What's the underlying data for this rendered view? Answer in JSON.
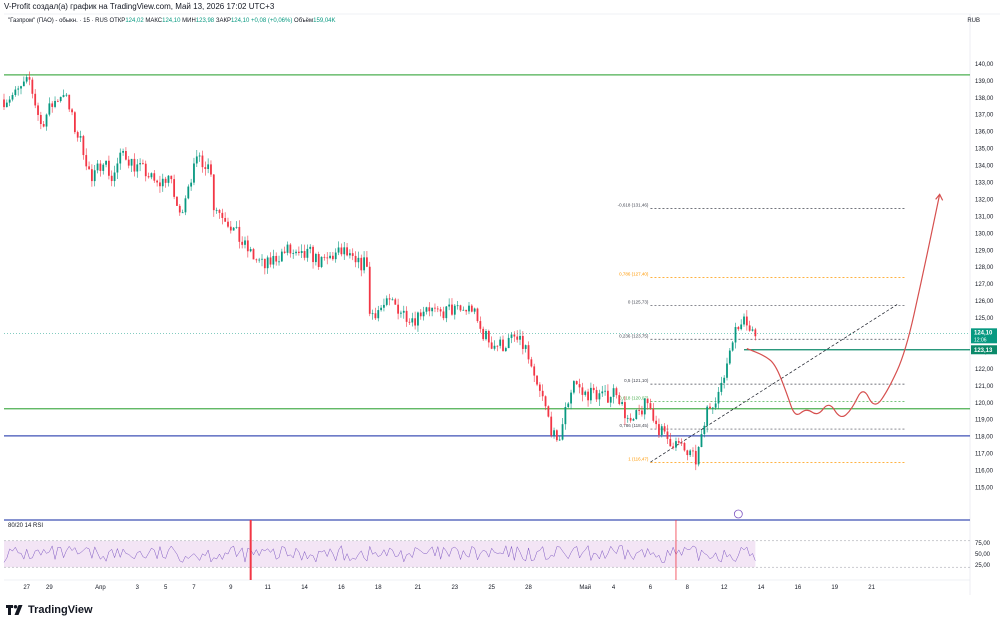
{
  "header": {
    "caption": "V-Profit создал(а) график на TradingView.com, Май 13, 2026 17:02 UTC+3",
    "currency": "RUB"
  },
  "legend": {
    "symbol": "\"Газпром\" (ПАО) - обыкн. · 15 · RUS",
    "open_label": "ОТКР",
    "open": "124,02",
    "high_label": "МАКС",
    "high": "124,10",
    "low_label": "МИН",
    "low": "123,98",
    "close_label": "ЗАКР",
    "close": "124,10",
    "change": "+0,08 (+0,06%)",
    "volume_label": "Объём",
    "volume": "159,04K"
  },
  "indicator": {
    "label": "80/20 14 RSI"
  },
  "brand": {
    "name": "TradingView",
    "logo_icon": "tradingview-logo-icon"
  },
  "colors": {
    "up": "#089981",
    "down": "#f23645",
    "green_level": "#4caf50",
    "blue_level": "#3f51b5",
    "teal_level": "#0b8a6a",
    "arrow": "#d6504f",
    "fib_dash": "#434651",
    "rsi_band": "#f3e5f5",
    "rsi_line": "#7e57c2"
  },
  "chart_data": [
    {
      "type": "candlestick",
      "title": "",
      "ylim": [
        114.5,
        142
      ],
      "y_ticks": [
        "115,00",
        "116,00",
        "117,00",
        "118,00",
        "119,00",
        "120,00",
        "121,00",
        "122,00",
        "123,00",
        "124,00",
        "125,00",
        "126,00",
        "127,00",
        "128,00",
        "129,00",
        "130,00",
        "131,00",
        "132,00",
        "133,00",
        "134,00",
        "135,00",
        "136,00",
        "137,00",
        "138,00",
        "139,00",
        "140,00"
      ],
      "x_ticks": [
        {
          "label": "27",
          "i": 8
        },
        {
          "label": "29",
          "i": 16
        },
        {
          "label": "Апр",
          "i": 34
        },
        {
          "label": "3",
          "i": 47
        },
        {
          "label": "5",
          "i": 57
        },
        {
          "label": "7",
          "i": 67
        },
        {
          "label": "9",
          "i": 80
        },
        {
          "label": "11",
          "i": 93
        },
        {
          "label": "14",
          "i": 106
        },
        {
          "label": "16",
          "i": 119
        },
        {
          "label": "18",
          "i": 132
        },
        {
          "label": "21",
          "i": 146
        },
        {
          "label": "23",
          "i": 159
        },
        {
          "label": "25",
          "i": 172
        },
        {
          "label": "28",
          "i": 185
        },
        {
          "label": "Май",
          "i": 205
        },
        {
          "label": "4",
          "i": 215
        },
        {
          "label": "6",
          "i": 228
        },
        {
          "label": "8",
          "i": 241
        },
        {
          "label": "12",
          "i": 254
        },
        {
          "label": "14",
          "i": 267
        },
        {
          "label": "16",
          "i": 280
        },
        {
          "label": "19",
          "i": 293
        },
        {
          "label": "21",
          "i": 306
        }
      ],
      "price_path": [
        {
          "i": 0,
          "v": 137.9
        },
        {
          "i": 4,
          "v": 138.2
        },
        {
          "i": 9,
          "v": 139.0
        },
        {
          "i": 13,
          "v": 136.4
        },
        {
          "i": 17,
          "v": 137.6
        },
        {
          "i": 21,
          "v": 138.4
        },
        {
          "i": 25,
          "v": 136.2
        },
        {
          "i": 28,
          "v": 135.0
        },
        {
          "i": 31,
          "v": 133.0
        },
        {
          "i": 35,
          "v": 134.5
        },
        {
          "i": 38,
          "v": 133.2
        },
        {
          "i": 42,
          "v": 134.8
        },
        {
          "i": 46,
          "v": 134.0
        },
        {
          "i": 50,
          "v": 133.6
        },
        {
          "i": 54,
          "v": 132.8
        },
        {
          "i": 58,
          "v": 133.4
        },
        {
          "i": 62,
          "v": 131.0
        },
        {
          "i": 65,
          "v": 133.0
        },
        {
          "i": 69,
          "v": 134.5
        },
        {
          "i": 73,
          "v": 133.8
        },
        {
          "i": 74,
          "v": 131.6
        },
        {
          "i": 78,
          "v": 131.0
        },
        {
          "i": 81,
          "v": 130.2
        },
        {
          "i": 84,
          "v": 129.4
        },
        {
          "i": 88,
          "v": 128.6
        },
        {
          "i": 92,
          "v": 128.0
        },
        {
          "i": 96,
          "v": 128.6
        },
        {
          "i": 100,
          "v": 129.0
        },
        {
          "i": 104,
          "v": 128.5
        },
        {
          "i": 108,
          "v": 128.8
        },
        {
          "i": 112,
          "v": 128.2
        },
        {
          "i": 116,
          "v": 128.7
        },
        {
          "i": 120,
          "v": 128.9
        },
        {
          "i": 124,
          "v": 128.1
        },
        {
          "i": 128,
          "v": 128.3
        },
        {
          "i": 129,
          "v": 125.2
        },
        {
          "i": 133,
          "v": 125.6
        },
        {
          "i": 137,
          "v": 125.9
        },
        {
          "i": 141,
          "v": 125.3
        },
        {
          "i": 145,
          "v": 125.0
        },
        {
          "i": 149,
          "v": 125.8
        },
        {
          "i": 153,
          "v": 125.1
        },
        {
          "i": 157,
          "v": 125.5
        },
        {
          "i": 161,
          "v": 125.4
        },
        {
          "i": 165,
          "v": 125.6
        },
        {
          "i": 168,
          "v": 124.3
        },
        {
          "i": 172,
          "v": 123.5
        },
        {
          "i": 176,
          "v": 123.4
        },
        {
          "i": 180,
          "v": 123.8
        },
        {
          "i": 184,
          "v": 123.2
        },
        {
          "i": 187,
          "v": 121.2
        },
        {
          "i": 190,
          "v": 120.2
        },
        {
          "i": 193,
          "v": 118.5
        },
        {
          "i": 195,
          "v": 117.4
        },
        {
          "i": 198,
          "v": 119.5
        },
        {
          "i": 201,
          "v": 121.4
        },
        {
          "i": 204,
          "v": 120.5
        },
        {
          "i": 208,
          "v": 120.6
        },
        {
          "i": 212,
          "v": 120.3
        },
        {
          "i": 216,
          "v": 120.8
        },
        {
          "i": 218,
          "v": 119.8
        },
        {
          "i": 221,
          "v": 118.6
        },
        {
          "i": 224,
          "v": 119.4
        },
        {
          "i": 227,
          "v": 120.0
        },
        {
          "i": 230,
          "v": 118.8
        },
        {
          "i": 233,
          "v": 118.0
        },
        {
          "i": 237,
          "v": 117.6
        },
        {
          "i": 241,
          "v": 117.0
        },
        {
          "i": 244,
          "v": 116.6
        },
        {
          "i": 246,
          "v": 117.8
        },
        {
          "i": 248,
          "v": 119.6
        },
        {
          "i": 251,
          "v": 120.4
        },
        {
          "i": 253,
          "v": 120.8
        },
        {
          "i": 255,
          "v": 122.4
        },
        {
          "i": 257,
          "v": 124.0
        },
        {
          "i": 259,
          "v": 124.4
        },
        {
          "i": 261,
          "v": 125.5
        },
        {
          "i": 263,
          "v": 124.2
        },
        {
          "i": 265,
          "v": 124.1
        }
      ],
      "horizontal_levels": [
        {
          "value": 139.35,
          "color": "#4caf50",
          "label": ""
        },
        {
          "value": 123.13,
          "color": "#0b8a6a",
          "label": "123,13",
          "from_i": 261
        },
        {
          "value": 119.65,
          "color": "#4caf50",
          "label": ""
        },
        {
          "value": 118.05,
          "color": "#3f51b5",
          "label": ""
        }
      ],
      "current_price": {
        "value": 124.1,
        "label": "124,10",
        "countdown": "12:06"
      },
      "fibonacci": [
        {
          "label": "-0,618 (131,46)",
          "value": 131.46,
          "color": "#434651"
        },
        {
          "label": "0,786 (127,40)",
          "value": 127.4,
          "color": "#ff9800"
        },
        {
          "label": "0 (125,73)",
          "value": 125.73,
          "color": "#434651"
        },
        {
          "label": "0,236 (123,75)",
          "value": 123.75,
          "color": "#434651"
        },
        {
          "label": "0,5 (121,10)",
          "value": 121.1,
          "color": "#434651"
        },
        {
          "label": "0,618 (120,07)",
          "value": 120.07,
          "color": "#4caf50"
        },
        {
          "label": "0,786 (118,45)",
          "value": 118.45,
          "color": "#434651"
        },
        {
          "label": "1 (116,47)",
          "value": 116.47,
          "color": "#ff9800"
        }
      ],
      "trendline": {
        "from": {
          "i": 228,
          "v": 116.5
        },
        "to": {
          "i": 315,
          "v": 125.8
        }
      },
      "forecast_path": [
        {
          "i": 262,
          "v": 123.2
        },
        {
          "i": 268,
          "v": 122.8
        },
        {
          "i": 272,
          "v": 122.3
        },
        {
          "i": 276,
          "v": 120.6
        },
        {
          "i": 279,
          "v": 119.1
        },
        {
          "i": 283,
          "v": 119.7
        },
        {
          "i": 287,
          "v": 119.2
        },
        {
          "i": 291,
          "v": 120.1
        },
        {
          "i": 295,
          "v": 119.0
        },
        {
          "i": 299,
          "v": 119.6
        },
        {
          "i": 303,
          "v": 121.0
        },
        {
          "i": 307,
          "v": 119.6
        },
        {
          "i": 312,
          "v": 120.8
        },
        {
          "i": 318,
          "v": 123.0
        },
        {
          "i": 324,
          "v": 127.5
        },
        {
          "i": 330,
          "v": 132.3
        }
      ]
    },
    {
      "type": "line",
      "title": "",
      "name": "80/20 14 RSI",
      "ylim": [
        0,
        100
      ],
      "levels": [
        80,
        20
      ],
      "y_ticks": [
        "75,00",
        "50,00",
        "25,00"
      ]
    }
  ]
}
